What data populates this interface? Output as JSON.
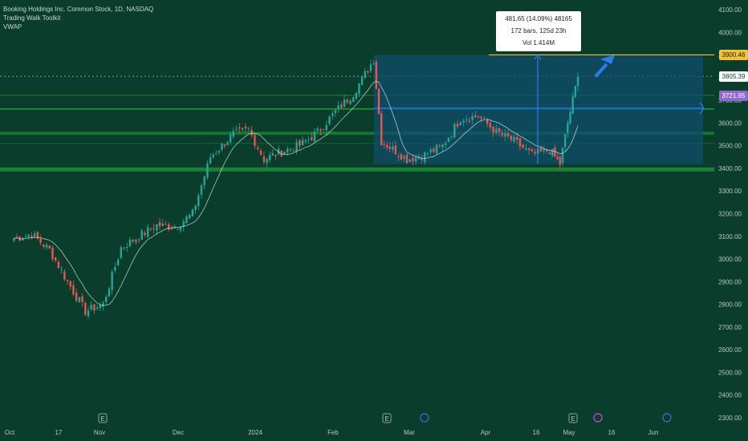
{
  "header": {
    "line1": "Booking Holdings Inc. Common Stock, 1D, NASDAQ",
    "line2": "Trading Walk Toolkit",
    "line3": "VWAP"
  },
  "tooltip": {
    "line1": "481.65 (14.09%) 48165",
    "line2": "172 bars, 125d 23h",
    "line3": "Vol 1.414M"
  },
  "tags": [
    {
      "label": "3900.46",
      "price": 3900.46,
      "bg": "#f2c233",
      "fg": "#1b1b1b"
    },
    {
      "label": "3805.39",
      "price": 3805.39,
      "bg": "#ffffff",
      "fg": "#0a3d2c"
    },
    {
      "label": "3721.95",
      "price": 3721.95,
      "bg": "#8e6ad1",
      "fg": "#ffffff"
    }
  ],
  "colors": {
    "up": "#26a69a",
    "down": "#ef5350",
    "ma": "#cfe9e2",
    "support": "#1f9a3a",
    "measure_box": "#0f4d6b",
    "arrow": "#2a7cf0",
    "target_line": "#f2c233"
  },
  "chart_data": {
    "type": "candlestick",
    "title": "Booking Holdings Inc. Common Stock, 1D, NASDAQ",
    "ylim": [
      2300,
      4100
    ],
    "yticks": [
      4100,
      4000,
      3900,
      3800,
      3700,
      3600,
      3500,
      3400,
      3300,
      3200,
      3100,
      3000,
      2900,
      2800,
      2700,
      2600,
      2500,
      2400,
      2300
    ],
    "xticks": [
      "Oct",
      "17",
      "Nov",
      "Dec",
      "2024",
      "Feb",
      "Mar",
      "Apr",
      "16",
      "May",
      "16",
      "Jun"
    ],
    "series": [
      {
        "name": "close",
        "points": [
          [
            "2023-10-02",
            3090
          ],
          [
            "2023-10-09",
            3110
          ],
          [
            "2023-10-16",
            3040
          ],
          [
            "2023-10-23",
            2900
          ],
          [
            "2023-10-30",
            2770
          ],
          [
            "2023-11-06",
            2800
          ],
          [
            "2023-11-13",
            3050
          ],
          [
            "2023-11-20",
            3100
          ],
          [
            "2023-11-27",
            3150
          ],
          [
            "2023-12-04",
            3140
          ],
          [
            "2023-12-11",
            3200
          ],
          [
            "2023-12-18",
            3450
          ],
          [
            "2023-12-27",
            3550
          ],
          [
            "2024-01-02",
            3570
          ],
          [
            "2024-01-08",
            3440
          ],
          [
            "2024-01-16",
            3480
          ],
          [
            "2024-01-22",
            3500
          ],
          [
            "2024-01-29",
            3560
          ],
          [
            "2024-02-05",
            3650
          ],
          [
            "2024-02-12",
            3730
          ],
          [
            "2024-02-20",
            3880
          ],
          [
            "2024-02-23",
            3520
          ],
          [
            "2024-03-04",
            3440
          ],
          [
            "2024-03-11",
            3460
          ],
          [
            "2024-03-18",
            3500
          ],
          [
            "2024-03-25",
            3620
          ],
          [
            "2024-04-01",
            3630
          ],
          [
            "2024-04-08",
            3560
          ],
          [
            "2024-04-15",
            3520
          ],
          [
            "2024-04-22",
            3460
          ],
          [
            "2024-04-29",
            3480
          ],
          [
            "2024-05-03",
            3420
          ],
          [
            "2024-05-06",
            3600
          ],
          [
            "2024-05-10",
            3805
          ]
        ]
      }
    ],
    "levels": [
      3900.46,
      3805.39,
      3721.95,
      3660,
      3555,
      3400
    ],
    "measure": {
      "from": 3418.81,
      "to": 3900.46,
      "change": "481.65 (14.09%) 48165",
      "bars": "172 bars, 125d 23h",
      "volume": "Vol 1.414M"
    },
    "grid": false
  }
}
